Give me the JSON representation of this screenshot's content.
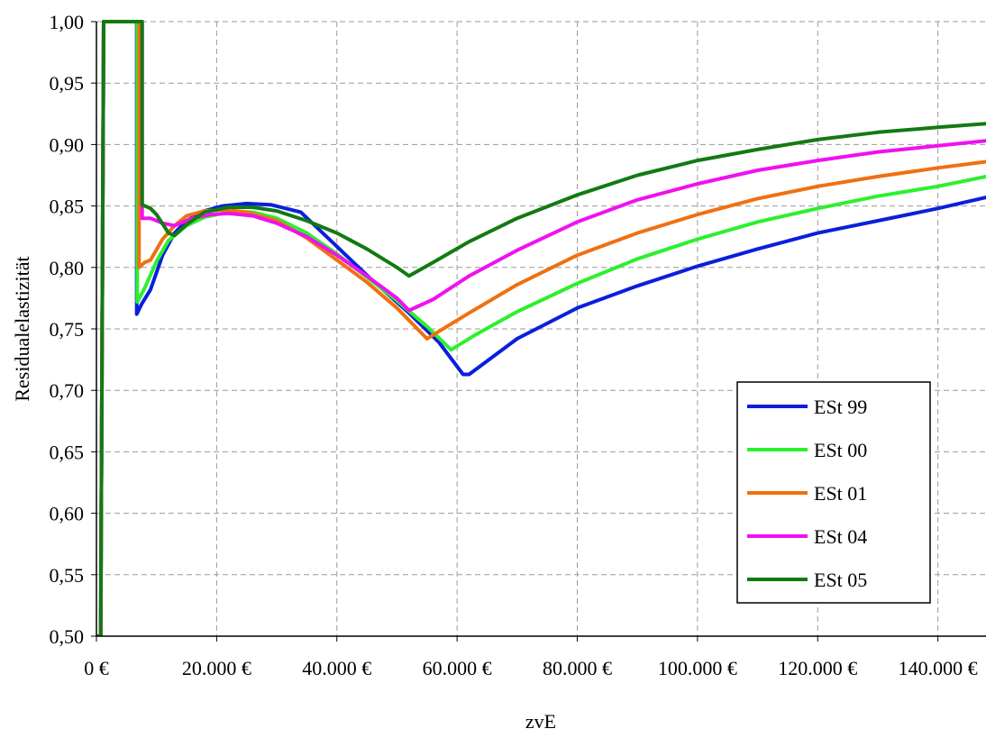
{
  "chart_data": {
    "type": "line",
    "title": "",
    "xlabel": "zvE",
    "ylabel": "Residualelastizität",
    "xlim": [
      0,
      148000
    ],
    "ylim": [
      0.5,
      1.0
    ],
    "x_ticks": [
      0,
      20000,
      40000,
      60000,
      80000,
      100000,
      120000,
      140000
    ],
    "x_tick_labels": [
      "0 €",
      "20.000 €",
      "40.000 €",
      "60.000 €",
      "80.000 €",
      "100.000 €",
      "120.000 €",
      "140.000 €"
    ],
    "y_ticks": [
      0.5,
      0.55,
      0.6,
      0.65,
      0.7,
      0.75,
      0.8,
      0.85,
      0.9,
      0.95,
      1.0
    ],
    "y_tick_labels": [
      "0,50",
      "0,55",
      "0,60",
      "0,65",
      "0,70",
      "0,75",
      "0,80",
      "0,85",
      "0,90",
      "0,95",
      "1,00"
    ],
    "grid": true,
    "legend": "right",
    "series": [
      {
        "name": "ESt 99",
        "color": "#0a1fdc",
        "points": [
          [
            0,
            0.5
          ],
          [
            700,
            0.5
          ],
          [
            1200,
            1.0
          ],
          [
            6700,
            1.0
          ],
          [
            6700,
            0.762
          ],
          [
            7500,
            0.77
          ],
          [
            9000,
            0.782
          ],
          [
            11000,
            0.81
          ],
          [
            13000,
            0.828
          ],
          [
            15000,
            0.838
          ],
          [
            18000,
            0.846
          ],
          [
            21000,
            0.85
          ],
          [
            25000,
            0.852
          ],
          [
            29000,
            0.851
          ],
          [
            34000,
            0.845
          ],
          [
            40000,
            0.817
          ],
          [
            46000,
            0.789
          ],
          [
            52000,
            0.763
          ],
          [
            57000,
            0.739
          ],
          [
            61000,
            0.713
          ],
          [
            62000,
            0.713
          ],
          [
            70000,
            0.742
          ],
          [
            80000,
            0.767
          ],
          [
            90000,
            0.785
          ],
          [
            100000,
            0.801
          ],
          [
            110000,
            0.815
          ],
          [
            120000,
            0.828
          ],
          [
            130000,
            0.838
          ],
          [
            140000,
            0.848
          ],
          [
            148000,
            0.857
          ]
        ]
      },
      {
        "name": "ESt 00",
        "color": "#2cf02c",
        "points": [
          [
            0,
            0.5
          ],
          [
            700,
            0.5
          ],
          [
            1200,
            1.0
          ],
          [
            6800,
            1.0
          ],
          [
            6800,
            0.772
          ],
          [
            8000,
            0.783
          ],
          [
            10000,
            0.805
          ],
          [
            12000,
            0.822
          ],
          [
            15000,
            0.834
          ],
          [
            18000,
            0.841
          ],
          [
            22000,
            0.845
          ],
          [
            26000,
            0.845
          ],
          [
            30000,
            0.84
          ],
          [
            35000,
            0.828
          ],
          [
            40000,
            0.811
          ],
          [
            45000,
            0.792
          ],
          [
            50000,
            0.773
          ],
          [
            55000,
            0.752
          ],
          [
            59000,
            0.733
          ],
          [
            63000,
            0.745
          ],
          [
            70000,
            0.764
          ],
          [
            80000,
            0.787
          ],
          [
            90000,
            0.807
          ],
          [
            100000,
            0.823
          ],
          [
            110000,
            0.837
          ],
          [
            120000,
            0.848
          ],
          [
            130000,
            0.858
          ],
          [
            140000,
            0.866
          ],
          [
            148000,
            0.874
          ]
        ]
      },
      {
        "name": "ESt 01",
        "color": "#f07010",
        "points": [
          [
            0,
            0.5
          ],
          [
            700,
            0.5
          ],
          [
            1200,
            1.0
          ],
          [
            7100,
            1.0
          ],
          [
            7100,
            0.8
          ],
          [
            8000,
            0.804
          ],
          [
            9000,
            0.806
          ],
          [
            11000,
            0.823
          ],
          [
            13000,
            0.834
          ],
          [
            15000,
            0.842
          ],
          [
            18000,
            0.846
          ],
          [
            21000,
            0.847
          ],
          [
            25000,
            0.845
          ],
          [
            30000,
            0.838
          ],
          [
            35000,
            0.824
          ],
          [
            40000,
            0.806
          ],
          [
            45000,
            0.788
          ],
          [
            50000,
            0.767
          ],
          [
            55000,
            0.742
          ],
          [
            58000,
            0.751
          ],
          [
            62000,
            0.763
          ],
          [
            70000,
            0.786
          ],
          [
            80000,
            0.81
          ],
          [
            90000,
            0.828
          ],
          [
            100000,
            0.843
          ],
          [
            110000,
            0.856
          ],
          [
            120000,
            0.866
          ],
          [
            130000,
            0.874
          ],
          [
            140000,
            0.881
          ],
          [
            148000,
            0.886
          ]
        ]
      },
      {
        "name": "ESt 04",
        "color": "#f010f0",
        "points": [
          [
            0,
            0.5
          ],
          [
            700,
            0.5
          ],
          [
            1200,
            1.0
          ],
          [
            7600,
            1.0
          ],
          [
            7600,
            0.84
          ],
          [
            9000,
            0.84
          ],
          [
            11000,
            0.836
          ],
          [
            13000,
            0.834
          ],
          [
            16000,
            0.84
          ],
          [
            19000,
            0.843
          ],
          [
            22000,
            0.844
          ],
          [
            26000,
            0.842
          ],
          [
            30000,
            0.836
          ],
          [
            35000,
            0.825
          ],
          [
            40000,
            0.81
          ],
          [
            45000,
            0.793
          ],
          [
            50000,
            0.775
          ],
          [
            52000,
            0.765
          ],
          [
            56000,
            0.774
          ],
          [
            62000,
            0.793
          ],
          [
            70000,
            0.814
          ],
          [
            80000,
            0.837
          ],
          [
            90000,
            0.855
          ],
          [
            100000,
            0.868
          ],
          [
            110000,
            0.879
          ],
          [
            120000,
            0.887
          ],
          [
            130000,
            0.894
          ],
          [
            140000,
            0.899
          ],
          [
            148000,
            0.903
          ]
        ]
      },
      {
        "name": "ESt 05",
        "color": "#127a12",
        "points": [
          [
            0,
            0.5
          ],
          [
            700,
            0.5
          ],
          [
            1200,
            1.0
          ],
          [
            7600,
            1.0
          ],
          [
            7600,
            0.851
          ],
          [
            9000,
            0.848
          ],
          [
            10000,
            0.843
          ],
          [
            12000,
            0.828
          ],
          [
            13000,
            0.826
          ],
          [
            15000,
            0.835
          ],
          [
            18000,
            0.845
          ],
          [
            22000,
            0.849
          ],
          [
            26000,
            0.849
          ],
          [
            30000,
            0.846
          ],
          [
            35000,
            0.838
          ],
          [
            40000,
            0.828
          ],
          [
            45000,
            0.815
          ],
          [
            50000,
            0.8
          ],
          [
            52000,
            0.793
          ],
          [
            56000,
            0.804
          ],
          [
            62000,
            0.821
          ],
          [
            70000,
            0.84
          ],
          [
            80000,
            0.859
          ],
          [
            90000,
            0.875
          ],
          [
            100000,
            0.887
          ],
          [
            110000,
            0.896
          ],
          [
            120000,
            0.904
          ],
          [
            130000,
            0.91
          ],
          [
            140000,
            0.914
          ],
          [
            148000,
            0.917
          ]
        ]
      }
    ]
  }
}
